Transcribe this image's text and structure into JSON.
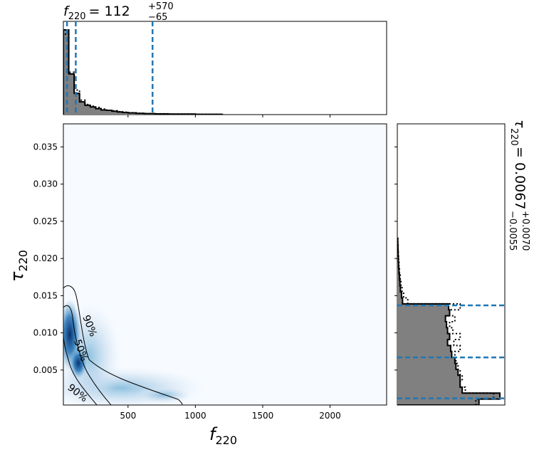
{
  "chart_data": {
    "type": "corner-plot",
    "top_title": {
      "param_italic": "f",
      "param_sub": "220",
      "median": "= 112",
      "upper": "+570",
      "lower": "−65"
    },
    "right_title": {
      "param": "τ",
      "param_sub": "220",
      "median": "= 0.0067",
      "upper": "+0.0070",
      "lower": "−0.0055"
    },
    "xlabel": {
      "main": "f",
      "sub": "220"
    },
    "ylabel": {
      "main": "τ",
      "sub": "220"
    },
    "xlim": [
      20,
      2420
    ],
    "ylim": [
      0.0003,
      0.0381
    ],
    "xticks": [
      500,
      1000,
      1500,
      2000
    ],
    "xtick_labels": [
      "500",
      "1000",
      "1500",
      "2000"
    ],
    "yticks": [
      0.005,
      0.01,
      0.015,
      0.02,
      0.025,
      0.03,
      0.035
    ],
    "ytick_labels": [
      "0.005",
      "0.010",
      "0.015",
      "0.020",
      "0.025",
      "0.030",
      "0.035"
    ],
    "contour_labels": [
      "90%",
      "50%",
      "90%"
    ],
    "f_marginal": {
      "quantile_lines": [
        47,
        112,
        682
      ],
      "bin_edges": [
        20,
        60,
        100,
        140,
        180,
        220,
        260,
        300,
        340,
        380,
        420,
        460,
        500,
        560,
        620,
        700,
        800,
        1000,
        1200
      ],
      "solid_hist": [
        1.0,
        0.48,
        0.25,
        0.15,
        0.11,
        0.09,
        0.07,
        0.055,
        0.05,
        0.04,
        0.032,
        0.025,
        0.02,
        0.015,
        0.012,
        0.008,
        0.006,
        0.003
      ],
      "dotted_hist": [
        0.95,
        0.5,
        0.29,
        0.17,
        0.12,
        0.1,
        0.085,
        0.065,
        0.05,
        0.045,
        0.035,
        0.028,
        0.022,
        0.016,
        0.013,
        0.009,
        0.006,
        0.004
      ]
    },
    "tau_marginal": {
      "quantile_lines": [
        0.0012,
        0.0067,
        0.0137
      ],
      "bin_edges": [
        0.0003,
        0.0011,
        0.0019,
        0.0027,
        0.0035,
        0.0043,
        0.0051,
        0.0059,
        0.0067,
        0.0075,
        0.0083,
        0.0091,
        0.0099,
        0.0107,
        0.0115,
        0.0123,
        0.0131,
        0.0139,
        0.0147,
        0.0155,
        0.0163,
        0.0171,
        0.0179,
        0.0187,
        0.0195,
        0.0203,
        0.0211,
        0.0219,
        0.0227
      ],
      "solid_hist": [
        0.78,
        0.98,
        0.62,
        0.6,
        0.6,
        0.58,
        0.56,
        0.55,
        0.52,
        0.51,
        0.48,
        0.5,
        0.48,
        0.47,
        0.46,
        0.5,
        0.49,
        0.05,
        0.04,
        0.03,
        0.025,
        0.02,
        0.016,
        0.012,
        0.01,
        0.008,
        0.006,
        0.004
      ],
      "dotted_hist": [
        0.75,
        0.92,
        0.65,
        0.6,
        0.62,
        0.6,
        0.58,
        0.56,
        0.55,
        0.6,
        0.54,
        0.6,
        0.53,
        0.5,
        0.55,
        0.5,
        0.6,
        0.1,
        0.06,
        0.045,
        0.035,
        0.028,
        0.02,
        0.016,
        0.012,
        0.009,
        0.007,
        0.005
      ]
    },
    "colors": {
      "quantile": "#1f77b4",
      "hist_fill": "#808080",
      "density_high": "#08306b",
      "density_low": "#f7fbff",
      "contour": "#000000"
    }
  }
}
